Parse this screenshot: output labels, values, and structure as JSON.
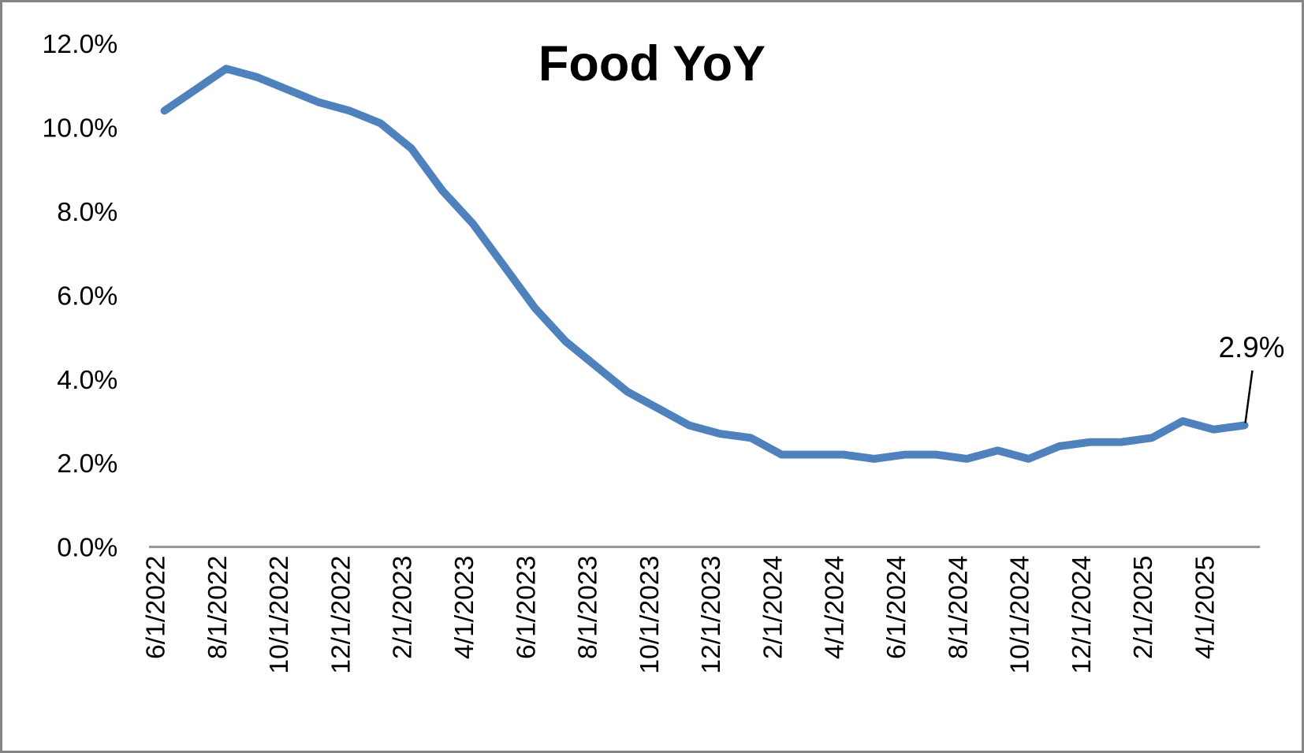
{
  "window": {
    "background_color": "#ffffff",
    "border_color": "#858585"
  },
  "chart_data": {
    "type": "line",
    "title": "Food YoY",
    "xlabel": "",
    "ylabel": "",
    "grid": false,
    "legend_position": "none",
    "series_name": "Food YoY",
    "series_color": "#4f81bd",
    "axis_line_color": "#949494",
    "x": [
      "6/1/2022",
      "7/1/2022",
      "8/1/2022",
      "9/1/2022",
      "10/1/2022",
      "11/1/2022",
      "12/1/2022",
      "1/1/2023",
      "2/1/2023",
      "3/1/2023",
      "4/1/2023",
      "5/1/2023",
      "6/1/2023",
      "7/1/2023",
      "8/1/2023",
      "9/1/2023",
      "10/1/2023",
      "11/1/2023",
      "12/1/2023",
      "1/1/2024",
      "2/1/2024",
      "3/1/2024",
      "4/1/2024",
      "5/1/2024",
      "6/1/2024",
      "7/1/2024",
      "8/1/2024",
      "9/1/2024",
      "10/1/2024",
      "11/1/2024",
      "12/1/2024",
      "1/1/2025",
      "2/1/2025",
      "3/1/2025",
      "4/1/2025",
      "5/1/2025"
    ],
    "values": [
      10.4,
      10.9,
      11.4,
      11.2,
      10.9,
      10.6,
      10.4,
      10.1,
      9.5,
      8.5,
      7.7,
      6.7,
      5.7,
      4.9,
      4.3,
      3.7,
      3.3,
      2.9,
      2.7,
      2.6,
      2.2,
      2.2,
      2.2,
      2.1,
      2.2,
      2.2,
      2.1,
      2.3,
      2.1,
      2.4,
      2.5,
      2.5,
      2.6,
      3.0,
      2.8,
      2.9
    ],
    "x_tick_every": 2,
    "x_tick_labels_shown": [
      "6/1/2022",
      "8/1/2022",
      "10/1/2022",
      "12/1/2022",
      "2/1/2023",
      "4/1/2023",
      "6/1/2023",
      "8/1/2023",
      "10/1/2023",
      "12/1/2023",
      "2/1/2024",
      "4/1/2024",
      "6/1/2024",
      "8/1/2024",
      "10/1/2024",
      "12/1/2024",
      "2/1/2025",
      "4/1/2025"
    ],
    "ylim": [
      0,
      12
    ],
    "y_tick_values": [
      0,
      2,
      4,
      6,
      8,
      10,
      12
    ],
    "y_tick_labels": [
      "0.0%",
      "2.0%",
      "4.0%",
      "6.0%",
      "8.0%",
      "10.0%",
      "12.0%"
    ],
    "end_data_label": "2.9%",
    "end_data_label_color": "#000000"
  }
}
